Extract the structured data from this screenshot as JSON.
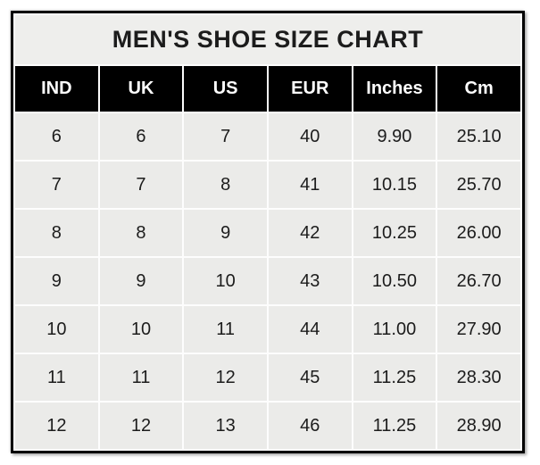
{
  "table": {
    "title": "MEN'S SHOE SIZE CHART",
    "columns": [
      "IND",
      "UK",
      "US",
      "EUR",
      "Inches",
      "Cm"
    ],
    "rows": [
      [
        "6",
        "6",
        "7",
        "40",
        "9.90",
        "25.10"
      ],
      [
        "7",
        "7",
        "8",
        "41",
        "10.15",
        "25.70"
      ],
      [
        "8",
        "8",
        "9",
        "42",
        "10.25",
        "26.00"
      ],
      [
        "9",
        "9",
        "10",
        "43",
        "10.50",
        "26.70"
      ],
      [
        "10",
        "10",
        "11",
        "44",
        "11.00",
        "27.90"
      ],
      [
        "11",
        "11",
        "12",
        "45",
        "11.25",
        "28.30"
      ],
      [
        "12",
        "12",
        "13",
        "46",
        "11.25",
        "28.90"
      ]
    ]
  },
  "colors": {
    "page_bg": "#ffffff",
    "border": "#000000",
    "title_bg": "#eeeeec",
    "header_bg": "#000000",
    "header_text": "#ffffff",
    "cell_bg": "#ebebe9",
    "grid": "#fdfdfd",
    "text": "#1c1c1c"
  },
  "chart_data": {
    "type": "table",
    "title": "MEN'S SHOE SIZE CHART",
    "columns": [
      "IND",
      "UK",
      "US",
      "EUR",
      "Inches",
      "Cm"
    ],
    "rows": [
      [
        6,
        6,
        7,
        40,
        9.9,
        25.1
      ],
      [
        7,
        7,
        8,
        41,
        10.15,
        25.7
      ],
      [
        8,
        8,
        9,
        42,
        10.25,
        26.0
      ],
      [
        9,
        9,
        10,
        43,
        10.5,
        26.7
      ],
      [
        10,
        10,
        11,
        44,
        11.0,
        27.9
      ],
      [
        11,
        11,
        12,
        45,
        11.25,
        28.3
      ],
      [
        12,
        12,
        13,
        46,
        11.25,
        28.9
      ]
    ]
  }
}
